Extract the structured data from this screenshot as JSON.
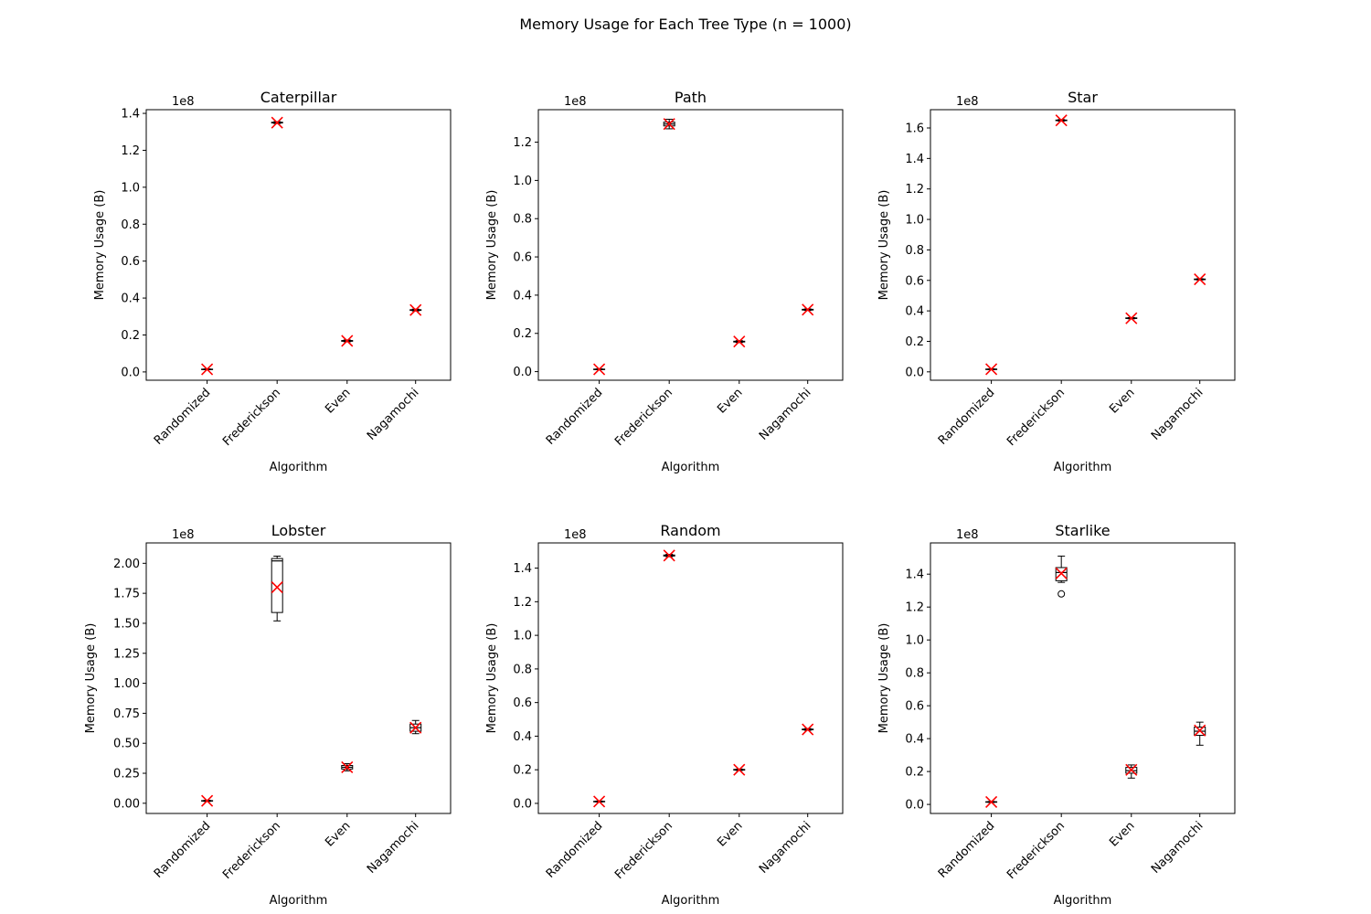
{
  "figure": {
    "title": "Memory Usage for Each Tree Type (n = 1000)"
  },
  "colors": {
    "mean_marker": "#ff0000",
    "median_line": "#000000",
    "box_edge": "#000000",
    "axes": "#000000",
    "text": "#000000"
  },
  "chart_data": [
    {
      "type": "box",
      "title": "Caterpillar",
      "xlabel": "Algorithm",
      "ylabel": "Memory Usage (B)",
      "offset_label": "1e8",
      "categories": [
        "Randomized",
        "Frederickson",
        "Even",
        "Nagamochi"
      ],
      "ylim": [
        -0.045,
        1.42
      ],
      "yticks": [
        0.0,
        0.2,
        0.4,
        0.6,
        0.8,
        1.0,
        1.2,
        1.4
      ],
      "ytick_labels": [
        "0.0",
        "0.2",
        "0.4",
        "0.6",
        "0.8",
        "1.0",
        "1.2",
        "1.4"
      ],
      "boxes": [
        {
          "min": 0.012,
          "q1": 0.013,
          "median": 0.014,
          "q3": 0.015,
          "max": 0.016,
          "mean": 0.014,
          "outliers": []
        },
        {
          "min": 1.345,
          "q1": 1.348,
          "median": 1.35,
          "q3": 1.352,
          "max": 1.355,
          "mean": 1.35,
          "outliers": []
        },
        {
          "min": 0.163,
          "q1": 0.166,
          "median": 0.168,
          "q3": 0.17,
          "max": 0.173,
          "mean": 0.168,
          "outliers": []
        },
        {
          "min": 0.33,
          "q1": 0.333,
          "median": 0.335,
          "q3": 0.337,
          "max": 0.34,
          "mean": 0.335,
          "outliers": []
        }
      ]
    },
    {
      "type": "box",
      "title": "Path",
      "xlabel": "Algorithm",
      "ylabel": "Memory Usage (B)",
      "offset_label": "1e8",
      "categories": [
        "Randomized",
        "Frederickson",
        "Even",
        "Nagamochi"
      ],
      "ylim": [
        -0.045,
        1.37
      ],
      "yticks": [
        0.0,
        0.2,
        0.4,
        0.6,
        0.8,
        1.0,
        1.2
      ],
      "ytick_labels": [
        "0.0",
        "0.2",
        "0.4",
        "0.6",
        "0.8",
        "1.0",
        "1.2"
      ],
      "boxes": [
        {
          "min": 0.01,
          "q1": 0.011,
          "median": 0.012,
          "q3": 0.013,
          "max": 0.014,
          "mean": 0.012,
          "outliers": []
        },
        {
          "min": 1.27,
          "q1": 1.285,
          "median": 1.295,
          "q3": 1.305,
          "max": 1.32,
          "mean": 1.295,
          "outliers": []
        },
        {
          "min": 0.152,
          "q1": 0.155,
          "median": 0.157,
          "q3": 0.159,
          "max": 0.162,
          "mean": 0.157,
          "outliers": []
        },
        {
          "min": 0.32,
          "q1": 0.322,
          "median": 0.324,
          "q3": 0.326,
          "max": 0.328,
          "mean": 0.324,
          "outliers": []
        }
      ]
    },
    {
      "type": "box",
      "title": "Star",
      "xlabel": "Algorithm",
      "ylabel": "Memory Usage (B)",
      "offset_label": "1e8",
      "categories": [
        "Randomized",
        "Frederickson",
        "Even",
        "Nagamochi"
      ],
      "ylim": [
        -0.055,
        1.72
      ],
      "yticks": [
        0.0,
        0.2,
        0.4,
        0.6,
        0.8,
        1.0,
        1.2,
        1.4,
        1.6
      ],
      "ytick_labels": [
        "0.0",
        "0.2",
        "0.4",
        "0.6",
        "0.8",
        "1.0",
        "1.2",
        "1.4",
        "1.6"
      ],
      "boxes": [
        {
          "min": 0.015,
          "q1": 0.016,
          "median": 0.017,
          "q3": 0.018,
          "max": 0.019,
          "mean": 0.017,
          "outliers": []
        },
        {
          "min": 1.645,
          "q1": 1.648,
          "median": 1.65,
          "q3": 1.652,
          "max": 1.655,
          "mean": 1.65,
          "outliers": []
        },
        {
          "min": 0.348,
          "q1": 0.35,
          "median": 0.352,
          "q3": 0.354,
          "max": 0.356,
          "mean": 0.352,
          "outliers": []
        },
        {
          "min": 0.603,
          "q1": 0.605,
          "median": 0.607,
          "q3": 0.609,
          "max": 0.611,
          "mean": 0.607,
          "outliers": []
        }
      ]
    },
    {
      "type": "box",
      "title": "Lobster",
      "xlabel": "Algorithm",
      "ylabel": "Memory Usage (B)",
      "offset_label": "1e8",
      "categories": [
        "Randomized",
        "Frederickson",
        "Even",
        "Nagamochi"
      ],
      "ylim": [
        -0.085,
        2.17
      ],
      "yticks": [
        0.0,
        0.25,
        0.5,
        0.75,
        1.0,
        1.25,
        1.5,
        1.75,
        2.0
      ],
      "ytick_labels": [
        "0.00",
        "0.25",
        "0.50",
        "0.75",
        "1.00",
        "1.25",
        "1.50",
        "1.75",
        "2.00"
      ],
      "boxes": [
        {
          "min": 0.015,
          "q1": 0.018,
          "median": 0.02,
          "q3": 0.022,
          "max": 0.025,
          "mean": 0.02,
          "outliers": []
        },
        {
          "min": 1.52,
          "q1": 1.59,
          "median": 2.02,
          "q3": 2.04,
          "max": 2.06,
          "mean": 1.8,
          "outliers": []
        },
        {
          "min": 0.27,
          "q1": 0.285,
          "median": 0.3,
          "q3": 0.315,
          "max": 0.33,
          "mean": 0.3,
          "outliers": []
        },
        {
          "min": 0.58,
          "q1": 0.6,
          "median": 0.63,
          "q3": 0.66,
          "max": 0.69,
          "mean": 0.63,
          "outliers": []
        }
      ]
    },
    {
      "type": "box",
      "title": "Random",
      "xlabel": "Algorithm",
      "ylabel": "Memory Usage (B)",
      "offset_label": "1e8",
      "categories": [
        "Randomized",
        "Frederickson",
        "Even",
        "Nagamochi"
      ],
      "ylim": [
        -0.06,
        1.55
      ],
      "yticks": [
        0.0,
        0.2,
        0.4,
        0.6,
        0.8,
        1.0,
        1.2,
        1.4
      ],
      "ytick_labels": [
        "0.0",
        "0.2",
        "0.4",
        "0.6",
        "0.8",
        "1.0",
        "1.2",
        "1.4"
      ],
      "boxes": [
        {
          "min": 0.008,
          "q1": 0.01,
          "median": 0.011,
          "q3": 0.012,
          "max": 0.014,
          "mean": 0.011,
          "outliers": []
        },
        {
          "min": 1.468,
          "q1": 1.472,
          "median": 1.475,
          "q3": 1.478,
          "max": 1.482,
          "mean": 1.475,
          "outliers": []
        },
        {
          "min": 0.196,
          "q1": 0.198,
          "median": 0.2,
          "q3": 0.202,
          "max": 0.204,
          "mean": 0.2,
          "outliers": []
        },
        {
          "min": 0.435,
          "q1": 0.438,
          "median": 0.44,
          "q3": 0.442,
          "max": 0.445,
          "mean": 0.44,
          "outliers": []
        }
      ]
    },
    {
      "type": "box",
      "title": "Starlike",
      "xlabel": "Algorithm",
      "ylabel": "Memory Usage (B)",
      "offset_label": "1e8",
      "categories": [
        "Randomized",
        "Frederickson",
        "Even",
        "Nagamochi"
      ],
      "ylim": [
        -0.055,
        1.59
      ],
      "yticks": [
        0.0,
        0.2,
        0.4,
        0.6,
        0.8,
        1.0,
        1.2,
        1.4
      ],
      "ytick_labels": [
        "0.0",
        "0.2",
        "0.4",
        "0.6",
        "0.8",
        "1.0",
        "1.2",
        "1.4"
      ],
      "boxes": [
        {
          "min": 0.012,
          "q1": 0.014,
          "median": 0.015,
          "q3": 0.016,
          "max": 0.018,
          "mean": 0.015,
          "outliers": []
        },
        {
          "min": 1.35,
          "q1": 1.36,
          "median": 1.41,
          "q3": 1.44,
          "max": 1.51,
          "mean": 1.405,
          "outliers": [
            1.28
          ]
        },
        {
          "min": 0.16,
          "q1": 0.19,
          "median": 0.205,
          "q3": 0.225,
          "max": 0.24,
          "mean": 0.21,
          "outliers": []
        },
        {
          "min": 0.36,
          "q1": 0.42,
          "median": 0.445,
          "q3": 0.47,
          "max": 0.5,
          "mean": 0.45,
          "outliers": []
        }
      ]
    }
  ]
}
